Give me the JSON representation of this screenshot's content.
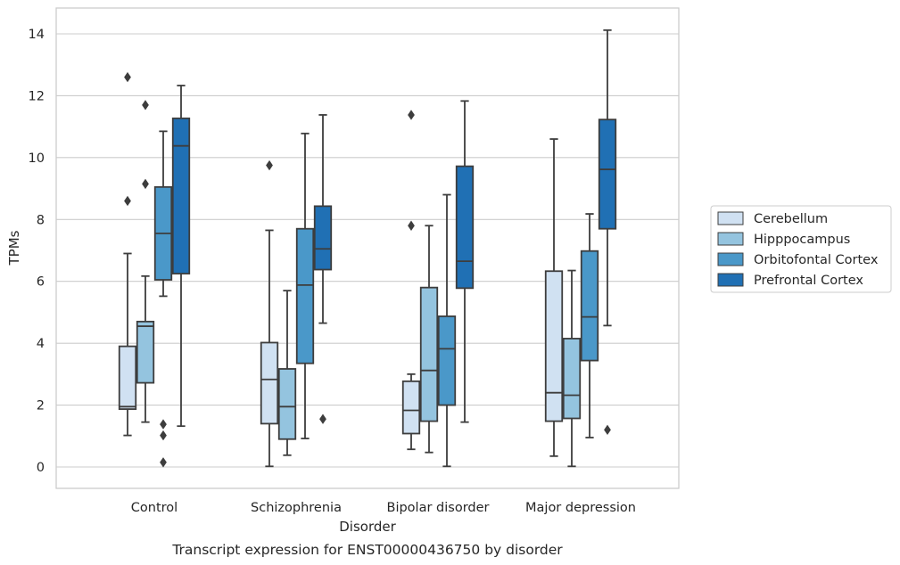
{
  "chart_data": {
    "type": "boxplot",
    "title": "",
    "caption": "Transcript expression for ENST00000436750 by disorder",
    "xlabel": "Disorder",
    "ylabel": "TPMs",
    "ylim": [
      -0.7,
      14.8
    ],
    "yticks": [
      0,
      2,
      4,
      6,
      8,
      10,
      12,
      14
    ],
    "grid": "horizontal",
    "legend_position": "right",
    "categories": [
      "Control",
      "Schizophrenia",
      "Bipolar disorder",
      "Major depression"
    ],
    "series": [
      {
        "name": "Cerebellum",
        "color": "#d0e1f2",
        "boxes": [
          {
            "whislo": 1.02,
            "q1": 1.87,
            "med": 1.95,
            "q3": 3.9,
            "whishi": 6.9,
            "fliers": [
              8.6,
              12.6
            ]
          },
          {
            "whislo": 0.02,
            "q1": 1.4,
            "med": 2.83,
            "q3": 4.02,
            "whishi": 7.65,
            "fliers": [
              9.75
            ]
          },
          {
            "whislo": 0.57,
            "q1": 1.08,
            "med": 1.83,
            "q3": 2.77,
            "whishi": 3.0,
            "fliers": [
              7.8,
              11.38
            ]
          },
          {
            "whislo": 0.35,
            "q1": 1.48,
            "med": 2.4,
            "q3": 6.33,
            "whishi": 10.6,
            "fliers": []
          }
        ]
      },
      {
        "name": "Hipppocampus",
        "color": "#94c4df",
        "boxes": [
          {
            "whislo": 1.45,
            "q1": 2.72,
            "med": 4.55,
            "q3": 4.7,
            "whishi": 6.17,
            "fliers": [
              9.15,
              11.7
            ]
          },
          {
            "whislo": 0.38,
            "q1": 0.9,
            "med": 1.95,
            "q3": 3.17,
            "whishi": 5.7,
            "fliers": []
          },
          {
            "whislo": 0.47,
            "q1": 1.48,
            "med": 3.12,
            "q3": 5.8,
            "whishi": 7.8,
            "fliers": []
          },
          {
            "whislo": 0.02,
            "q1": 1.57,
            "med": 2.32,
            "q3": 4.15,
            "whishi": 6.35,
            "fliers": []
          }
        ]
      },
      {
        "name": "Orbitofontal Cortex",
        "color": "#4a98c9",
        "boxes": [
          {
            "whislo": 5.52,
            "q1": 6.05,
            "med": 7.55,
            "q3": 9.05,
            "whishi": 10.85,
            "fliers": [
              0.15,
              1.02,
              1.38
            ]
          },
          {
            "whislo": 0.92,
            "q1": 3.35,
            "med": 5.88,
            "q3": 7.7,
            "whishi": 10.78,
            "fliers": []
          },
          {
            "whislo": 0.02,
            "q1": 2.0,
            "med": 3.82,
            "q3": 4.87,
            "whishi": 8.8,
            "fliers": []
          },
          {
            "whislo": 0.95,
            "q1": 3.44,
            "med": 4.85,
            "q3": 6.98,
            "whishi": 8.18,
            "fliers": []
          }
        ]
      },
      {
        "name": "Prefrontal Cortex",
        "color": "#2070b4",
        "boxes": [
          {
            "whislo": 1.32,
            "q1": 6.25,
            "med": 10.38,
            "q3": 11.27,
            "whishi": 12.33,
            "fliers": []
          },
          {
            "whislo": 4.65,
            "q1": 6.38,
            "med": 7.05,
            "q3": 8.43,
            "whishi": 11.38,
            "fliers": [
              1.55
            ]
          },
          {
            "whislo": 1.45,
            "q1": 5.78,
            "med": 6.65,
            "q3": 9.72,
            "whishi": 11.83,
            "fliers": []
          },
          {
            "whislo": 4.57,
            "q1": 7.7,
            "med": 9.62,
            "q3": 11.23,
            "whishi": 14.12,
            "fliers": [
              1.2
            ]
          }
        ]
      }
    ]
  }
}
